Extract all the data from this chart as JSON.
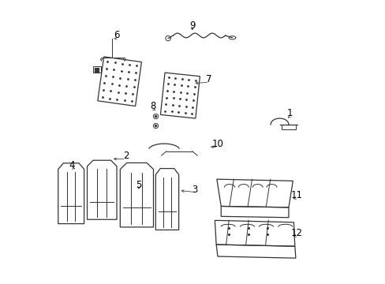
{
  "bg_color": "#ffffff",
  "line_color": "#333333",
  "label_color": "#000000",
  "fig_width": 4.89,
  "fig_height": 3.6,
  "dpi": 100
}
